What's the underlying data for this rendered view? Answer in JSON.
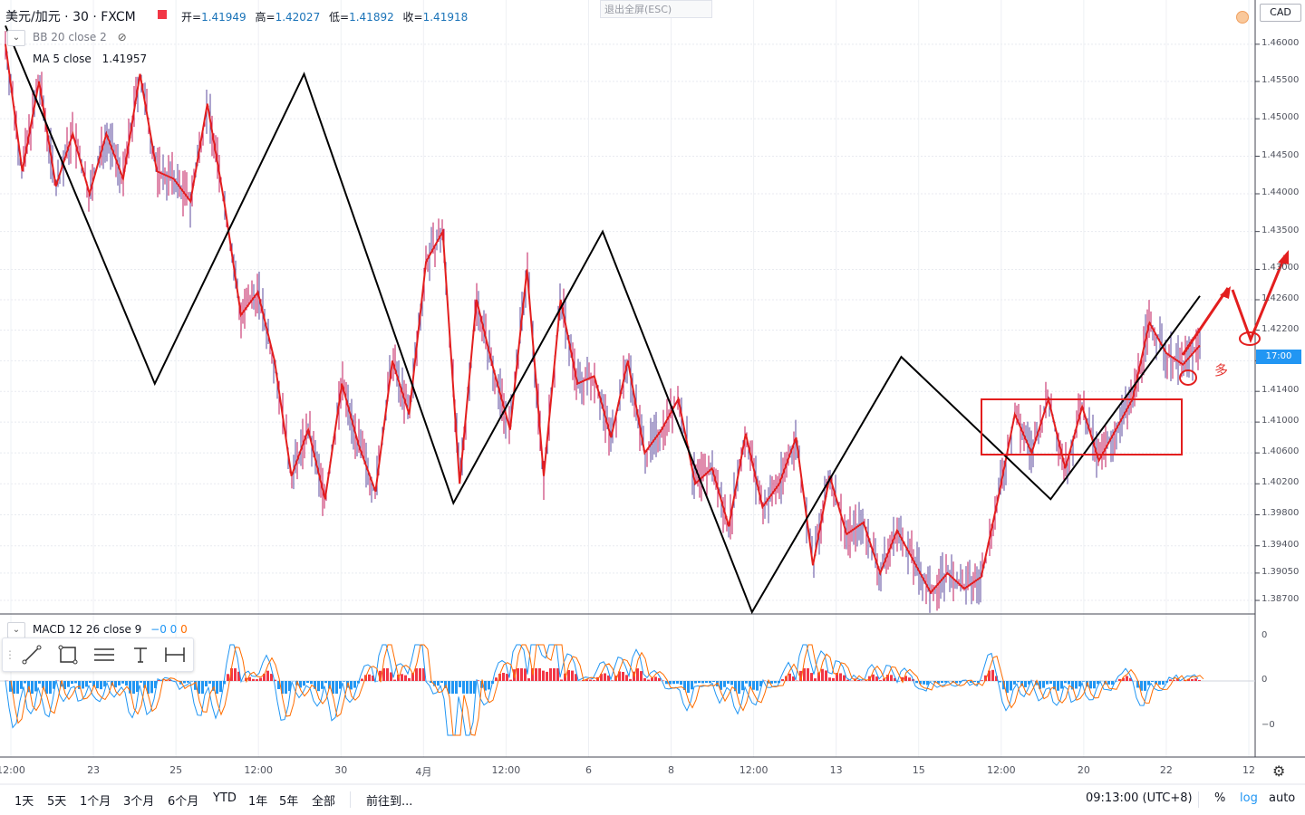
{
  "header": {
    "symbol": "美元/加元 · 30 · FXCM",
    "ohlc": [
      {
        "label": "开=",
        "value": "1.41949"
      },
      {
        "label": "高=",
        "value": "1.42027"
      },
      {
        "label": "低=",
        "value": "1.41892"
      },
      {
        "label": "收=",
        "value": "1.41918"
      }
    ],
    "exit_fullscreen": "退出全屏(ESC)"
  },
  "indicators": {
    "bb": {
      "label": "BB 20 close 2"
    },
    "ma": {
      "label": "MA 5 close",
      "value": "1.41957"
    },
    "macd": {
      "label": "MACD 12 26 close 9",
      "v1": "−0",
      "v2": "0",
      "v3": "0"
    }
  },
  "price_axis": {
    "currency": "CAD",
    "labels": [
      "1.46000",
      "1.45500",
      "1.45000",
      "1.44500",
      "1.44000",
      "1.43500",
      "1.43000",
      "1.42600",
      "1.42200",
      "1.41800",
      "1.41400",
      "1.41000",
      "1.40600",
      "1.40200",
      "1.39800",
      "1.39400",
      "1.39050",
      "1.38700"
    ],
    "current_tag": "17:00"
  },
  "macd_axis": {
    "labels": [
      "0",
      "0",
      "−0"
    ]
  },
  "time_axis": {
    "labels": [
      "12:00",
      "23",
      "25",
      "12:00",
      "30",
      "4月",
      "12:00",
      "6",
      "8",
      "12:00",
      "13",
      "15",
      "12:00",
      "20",
      "22",
      "12"
    ]
  },
  "annotation": {
    "text": "多"
  },
  "bottom_bar": {
    "ranges": [
      "1天",
      "5天",
      "1个月",
      "3个月",
      "6个月",
      "YTD",
      "1年",
      "5年",
      "全部"
    ],
    "goto": "前往到...",
    "clock": "09:13:00 (UTC+8)",
    "percent": "%",
    "log": "log",
    "auto": "auto"
  },
  "colors": {
    "black_wave": "#000000",
    "red_wave": "#e31e1e",
    "candles": "#5b4a9e",
    "macd_pos": "#f23645",
    "macd_neg": "#2196f3",
    "accent": "#2196f3"
  },
  "chart_data": {
    "type": "line",
    "ylim": [
      1.3855,
      1.4645
    ],
    "y_scale": "log",
    "grid": true,
    "series": [
      {
        "values": [
          1.4625,
          1.415,
          1.456,
          1.3995,
          1.435,
          1.3855,
          1.4185,
          1.4,
          1.4265
        ]
      },
      {
        "values": [
          1.46,
          1.443,
          1.455,
          1.441,
          1.448,
          1.44,
          1.448,
          1.442,
          1.456,
          1.443,
          1.442,
          1.439,
          1.452,
          1.439,
          1.424,
          1.427,
          1.418,
          1.403,
          1.409,
          1.4,
          1.415,
          1.407,
          1.401,
          1.418,
          1.411,
          1.431,
          1.435,
          1.402,
          1.426,
          1.417,
          1.409,
          1.43,
          1.403,
          1.426,
          1.415,
          1.416,
          1.408,
          1.418,
          1.406,
          1.409,
          1.413,
          1.402,
          1.404,
          1.3965,
          1.4085,
          1.399,
          1.402,
          1.408,
          1.3915,
          1.403,
          1.3955,
          1.397,
          1.3905,
          1.396,
          1.392,
          1.388,
          1.3905,
          1.3885,
          1.39,
          1.4,
          1.411,
          1.406,
          1.413,
          1.404,
          1.412,
          1.405,
          1.409,
          1.413,
          1.423,
          1.419,
          1.4175,
          1.42
        ]
      }
    ]
  }
}
